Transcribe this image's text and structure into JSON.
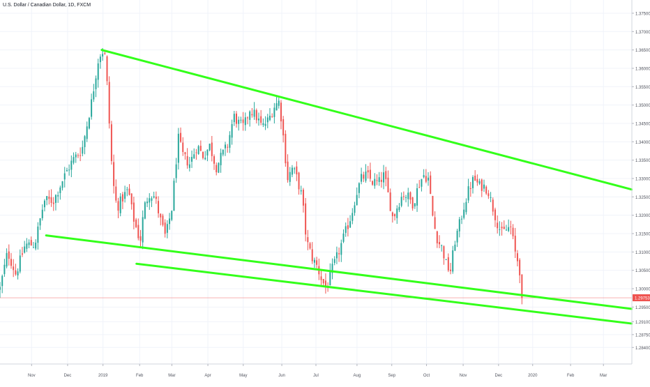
{
  "header": {
    "title": "U.S. Dollar / Canadian Dollar, 1D, FXCM"
  },
  "chart_data": {
    "type": "candlestick",
    "symbol": "U.S. Dollar / Canadian Dollar",
    "interval": "1D",
    "source": "FXCM",
    "ylim": [
      1.2795,
      1.3786
    ],
    "y_ticks": [
      "1.37500",
      "1.37000",
      "1.36500",
      "1.36000",
      "1.35500",
      "1.35000",
      "1.34500",
      "1.34000",
      "1.33500",
      "1.33000",
      "1.32500",
      "1.32000",
      "1.31500",
      "1.31000",
      "1.30500",
      "1.30000",
      "1.29500",
      "1.29100",
      "1.28750",
      "1.28400"
    ],
    "x_ticks": [
      {
        "label": "Nov",
        "pos": 0.05
      },
      {
        "label": "Dec",
        "pos": 0.107
      },
      {
        "label": "2019",
        "pos": 0.163
      },
      {
        "label": "Feb",
        "pos": 0.221
      },
      {
        "label": "Mar",
        "pos": 0.272
      },
      {
        "label": "Apr",
        "pos": 0.329
      },
      {
        "label": "May",
        "pos": 0.385
      },
      {
        "label": "Jun",
        "pos": 0.446
      },
      {
        "label": "Jul",
        "pos": 0.5
      },
      {
        "label": "Aug",
        "pos": 0.565
      },
      {
        "label": "Sep",
        "pos": 0.62
      },
      {
        "label": "Oct",
        "pos": 0.675
      },
      {
        "label": "Nov",
        "pos": 0.733
      },
      {
        "label": "Dec",
        "pos": 0.789
      },
      {
        "label": "2020",
        "pos": 0.843
      },
      {
        "label": "Feb",
        "pos": 0.903
      },
      {
        "label": "Mar",
        "pos": 0.955
      }
    ],
    "last_price": "1.29753",
    "last_price_value": 1.29753,
    "price_anchors": [
      [
        0.0,
        1.3
      ],
      [
        0.012,
        1.31
      ],
      [
        0.025,
        1.304
      ],
      [
        0.04,
        1.312
      ],
      [
        0.055,
        1.312
      ],
      [
        0.07,
        1.324
      ],
      [
        0.085,
        1.324
      ],
      [
        0.1,
        1.33
      ],
      [
        0.115,
        1.335
      ],
      [
        0.13,
        1.338
      ],
      [
        0.145,
        1.351
      ],
      [
        0.155,
        1.362
      ],
      [
        0.161,
        1.365
      ],
      [
        0.167,
        1.363
      ],
      [
        0.172,
        1.348
      ],
      [
        0.178,
        1.33
      ],
      [
        0.185,
        1.322
      ],
      [
        0.195,
        1.325
      ],
      [
        0.203,
        1.327
      ],
      [
        0.21,
        1.32
      ],
      [
        0.218,
        1.315
      ],
      [
        0.222,
        1.313
      ],
      [
        0.228,
        1.322
      ],
      [
        0.236,
        1.326
      ],
      [
        0.245,
        1.325
      ],
      [
        0.255,
        1.318
      ],
      [
        0.262,
        1.314
      ],
      [
        0.272,
        1.322
      ],
      [
        0.282,
        1.341
      ],
      [
        0.29,
        1.336
      ],
      [
        0.3,
        1.334
      ],
      [
        0.312,
        1.339
      ],
      [
        0.322,
        1.336
      ],
      [
        0.332,
        1.339
      ],
      [
        0.342,
        1.333
      ],
      [
        0.35,
        1.336
      ],
      [
        0.36,
        1.339
      ],
      [
        0.37,
        1.347
      ],
      [
        0.378,
        1.345
      ],
      [
        0.386,
        1.344
      ],
      [
        0.395,
        1.349
      ],
      [
        0.405,
        1.347
      ],
      [
        0.415,
        1.344
      ],
      [
        0.425,
        1.346
      ],
      [
        0.435,
        1.35
      ],
      [
        0.442,
        1.351
      ],
      [
        0.448,
        1.342
      ],
      [
        0.455,
        1.33
      ],
      [
        0.463,
        1.333
      ],
      [
        0.47,
        1.33
      ],
      [
        0.478,
        1.325
      ],
      [
        0.485,
        1.313
      ],
      [
        0.495,
        1.308
      ],
      [
        0.502,
        1.306
      ],
      [
        0.51,
        1.302
      ],
      [
        0.517,
        1.3
      ],
      [
        0.525,
        1.305
      ],
      [
        0.532,
        1.308
      ],
      [
        0.54,
        1.312
      ],
      [
        0.548,
        1.316
      ],
      [
        0.556,
        1.32
      ],
      [
        0.564,
        1.326
      ],
      [
        0.572,
        1.33
      ],
      [
        0.58,
        1.331
      ],
      [
        0.59,
        1.329
      ],
      [
        0.6,
        1.329
      ],
      [
        0.608,
        1.331
      ],
      [
        0.615,
        1.325
      ],
      [
        0.622,
        1.319
      ],
      [
        0.63,
        1.323
      ],
      [
        0.638,
        1.326
      ],
      [
        0.646,
        1.325
      ],
      [
        0.654,
        1.323
      ],
      [
        0.662,
        1.328
      ],
      [
        0.67,
        1.331
      ],
      [
        0.678,
        1.33
      ],
      [
        0.686,
        1.318
      ],
      [
        0.693,
        1.313
      ],
      [
        0.7,
        1.311
      ],
      [
        0.707,
        1.306
      ],
      [
        0.713,
        1.305
      ],
      [
        0.72,
        1.313
      ],
      [
        0.728,
        1.318
      ],
      [
        0.735,
        1.323
      ],
      [
        0.742,
        1.327
      ],
      [
        0.75,
        1.33
      ],
      [
        0.758,
        1.328
      ],
      [
        0.765,
        1.328
      ],
      [
        0.772,
        1.327
      ],
      [
        0.78,
        1.322
      ],
      [
        0.787,
        1.318
      ],
      [
        0.794,
        1.315
      ],
      [
        0.801,
        1.316
      ],
      [
        0.808,
        1.317
      ],
      [
        0.815,
        1.31
      ],
      [
        0.822,
        1.306
      ],
      [
        0.826,
        1.2975
      ]
    ],
    "trendlines": [
      {
        "name": "upper",
        "from": [
          0.161,
          1.365
        ],
        "to": [
          1.0,
          1.327
        ]
      },
      {
        "name": "lower-1",
        "from": [
          0.073,
          1.3145
        ],
        "to": [
          1.0,
          1.2945
        ]
      },
      {
        "name": "lower-2",
        "from": [
          0.216,
          1.3068
        ],
        "to": [
          1.0,
          1.2905
        ]
      }
    ],
    "colors": {
      "up": "#26a69a",
      "down": "#ef5350",
      "trendline": "#33ff1a",
      "last_price_bg": "#ef5350",
      "grid": "#f0f3fa",
      "axis_text": "#50535e"
    }
  }
}
